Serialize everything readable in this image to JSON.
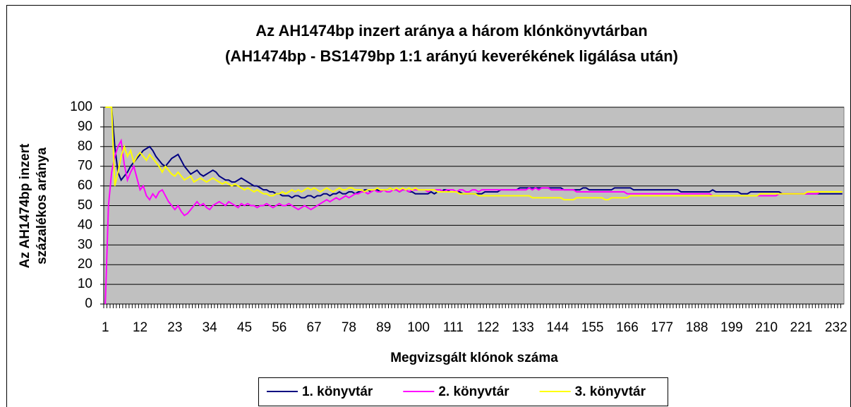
{
  "chart_data": {
    "type": "line",
    "title": "Az AH1474bp inzert aránya a három klónkönyvtárban",
    "subtitle": "(AH1474bp - BS1479bp 1:1 arányú keverékének ligálása után)",
    "ylabel": [
      "Az AH1474bp inzert",
      "százalékos aránya"
    ],
    "xlabel": "Megvizsgált klónok száma",
    "ylim": [
      0,
      100
    ],
    "yticks": [
      0,
      10,
      20,
      30,
      40,
      50,
      60,
      70,
      80,
      90,
      100
    ],
    "grid": true,
    "plot_color": "#c0c0c0",
    "legend": "bottom",
    "categories": [
      1,
      null,
      null,
      null,
      null,
      null,
      null,
      null,
      null,
      null,
      null,
      12,
      null,
      null,
      null,
      null,
      null,
      null,
      null,
      null,
      null,
      null,
      23,
      null,
      null,
      null,
      null,
      null,
      null,
      null,
      null,
      null,
      null,
      34,
      null,
      null,
      null,
      null,
      null,
      null,
      null,
      null,
      null,
      null,
      45,
      null,
      null,
      null,
      null,
      null,
      null,
      null,
      null,
      null,
      null,
      56,
      null,
      null,
      null,
      null,
      null,
      null,
      null,
      null,
      null,
      null,
      67,
      null,
      null,
      null,
      null,
      null,
      null,
      null,
      null,
      null,
      null,
      78,
      null,
      null,
      null,
      null,
      null,
      null,
      null,
      null,
      null,
      null,
      89,
      null,
      null,
      null,
      null,
      null,
      null,
      null,
      null,
      null,
      null,
      100,
      null,
      null,
      null,
      null,
      null,
      null,
      null,
      null,
      null,
      null,
      111,
      null,
      null,
      null,
      null,
      null,
      null,
      null,
      null,
      null,
      null,
      122,
      null,
      null,
      null,
      null,
      null,
      null,
      null,
      null,
      null,
      null,
      133,
      null,
      null,
      null,
      null,
      null,
      null,
      null,
      null,
      null,
      null,
      144,
      null,
      null,
      null,
      null,
      null,
      null,
      null,
      null,
      null,
      null,
      155,
      null,
      null,
      null,
      null,
      null,
      null,
      null,
      null,
      null,
      null,
      166,
      null,
      null,
      null,
      null,
      null,
      null,
      null,
      null,
      null,
      null,
      177,
      null,
      null,
      null,
      null,
      null,
      null,
      null,
      null,
      null,
      null,
      188,
      null,
      null,
      null,
      null,
      null,
      null,
      null,
      null,
      null,
      null,
      199,
      null,
      null,
      null,
      null,
      null,
      null,
      null,
      null,
      null,
      null,
      210,
      null,
      null,
      null,
      null,
      null,
      null,
      null,
      null,
      null,
      null,
      221,
      null,
      null,
      null,
      null,
      null,
      null,
      null,
      null,
      null,
      null,
      232,
      null,
      null
    ],
    "series": [
      {
        "name": "1. könyvtár",
        "color": "#000080",
        "values": [
          100,
          100,
          100,
          80,
          67,
          63,
          65,
          67,
          70,
          72,
          74,
          76,
          78,
          79,
          80,
          78,
          75,
          73,
          71,
          70,
          72,
          74,
          75,
          76,
          73,
          70,
          68,
          66,
          67,
          68,
          66,
          65,
          66,
          67,
          68,
          67,
          65,
          64,
          63,
          63,
          62,
          62,
          63,
          64,
          63,
          62,
          61,
          60,
          60,
          59,
          58,
          58,
          57,
          57,
          56,
          56,
          55,
          55,
          55,
          54,
          55,
          55,
          54,
          54,
          55,
          55,
          54,
          55,
          55,
          56,
          56,
          55,
          56,
          56,
          57,
          56,
          56,
          57,
          57,
          56,
          57,
          57,
          58,
          58,
          57,
          58,
          58,
          57,
          58,
          58,
          59,
          58,
          58,
          57,
          58,
          58,
          57,
          57,
          56,
          56,
          56,
          56,
          56,
          57,
          56,
          57,
          57,
          58,
          58,
          57,
          57,
          57,
          57,
          56,
          56,
          56,
          56,
          56,
          56,
          56,
          57,
          57,
          57,
          57,
          57,
          58,
          58,
          58,
          58,
          58,
          58,
          59,
          59,
          59,
          59,
          59,
          59,
          59,
          59,
          59,
          59,
          59,
          59,
          59,
          59,
          58,
          58,
          58,
          58,
          58,
          58,
          59,
          59,
          58,
          58,
          58,
          58,
          58,
          58,
          58,
          58,
          59,
          59,
          59,
          59,
          59,
          59,
          58,
          58,
          58,
          58,
          58,
          58,
          58,
          58,
          58,
          58,
          58,
          58,
          58,
          58,
          58,
          57,
          57,
          57,
          57,
          57,
          57,
          57,
          57,
          57,
          57,
          58,
          57,
          57,
          57,
          57,
          57,
          57,
          57,
          57,
          56,
          56,
          56,
          57,
          57,
          57,
          57,
          57,
          57,
          57,
          57,
          57,
          57,
          56,
          56,
          56,
          56,
          56,
          56,
          56,
          56,
          56,
          56,
          56,
          56,
          56,
          56,
          56,
          56,
          56,
          56,
          56,
          56
        ]
      },
      {
        "name": "2. könyvtár",
        "color": "#ff00ff",
        "values": [
          0,
          50,
          67,
          75,
          80,
          83,
          71,
          63,
          67,
          70,
          64,
          58,
          60,
          55,
          53,
          56,
          54,
          57,
          58,
          55,
          52,
          50,
          48,
          50,
          47,
          45,
          46,
          48,
          50,
          52,
          50,
          51,
          49,
          48,
          50,
          51,
          52,
          51,
          50,
          52,
          51,
          50,
          49,
          51,
          50,
          51,
          50,
          50,
          49,
          50,
          50,
          51,
          50,
          49,
          50,
          51,
          50,
          50,
          51,
          50,
          49,
          48,
          49,
          50,
          49,
          48,
          49,
          50,
          51,
          52,
          53,
          52,
          53,
          54,
          53,
          54,
          55,
          54,
          55,
          56,
          56,
          57,
          57,
          56,
          57,
          58,
          57,
          57,
          58,
          57,
          57,
          58,
          58,
          57,
          58,
          58,
          57,
          58,
          58,
          58,
          58,
          58,
          57,
          58,
          58,
          58,
          58,
          57,
          58,
          58,
          58,
          57,
          58,
          58,
          57,
          57,
          58,
          58,
          57,
          58,
          58,
          58,
          58,
          58,
          58,
          58,
          58,
          58,
          58,
          58,
          58,
          58,
          58,
          58,
          59,
          58,
          59,
          58,
          59,
          59,
          59,
          58,
          58,
          58,
          58,
          58,
          58,
          58,
          58,
          57,
          57,
          57,
          57,
          57,
          57,
          57,
          57,
          57,
          57,
          57,
          57,
          57,
          57,
          57,
          57,
          56,
          56,
          56,
          56,
          56,
          56,
          56,
          56,
          56,
          56,
          56,
          56,
          56,
          56,
          56,
          56,
          56,
          56,
          56,
          56,
          56,
          56,
          56,
          56,
          56,
          56,
          56,
          55,
          55,
          55,
          55,
          55,
          55,
          55,
          55,
          55,
          55,
          55,
          55,
          55,
          55,
          55,
          55,
          55,
          55,
          55,
          55,
          55,
          56,
          56,
          56,
          56,
          56,
          56,
          56,
          56,
          56,
          56,
          56,
          56,
          56,
          57,
          57,
          57,
          57,
          57,
          57,
          57,
          57
        ]
      },
      {
        "name": "3. könyvtár",
        "color": "#ffff00",
        "values": [
          100,
          100,
          100,
          60,
          67,
          75,
          80,
          75,
          78,
          72,
          75,
          77,
          75,
          73,
          76,
          74,
          72,
          70,
          67,
          70,
          68,
          66,
          65,
          67,
          65,
          63,
          64,
          65,
          62,
          63,
          64,
          63,
          62,
          63,
          64,
          63,
          62,
          61,
          62,
          61,
          60,
          61,
          60,
          59,
          58,
          59,
          58,
          57,
          58,
          57,
          56,
          56,
          55,
          55,
          56,
          56,
          57,
          56,
          57,
          58,
          57,
          58,
          57,
          58,
          59,
          58,
          59,
          58,
          57,
          58,
          59,
          58,
          57,
          58,
          59,
          58,
          58,
          59,
          59,
          58,
          58,
          58,
          57,
          58,
          58,
          58,
          59,
          58,
          58,
          58,
          59,
          58,
          59,
          58,
          59,
          58,
          59,
          58,
          59,
          58,
          58,
          58,
          58,
          58,
          58,
          57,
          57,
          57,
          57,
          57,
          57,
          57,
          56,
          56,
          56,
          56,
          56,
          56,
          55,
          55,
          55,
          55,
          55,
          55,
          55,
          55,
          55,
          55,
          55,
          55,
          55,
          55,
          55,
          55,
          55,
          54,
          54,
          54,
          54,
          54,
          54,
          54,
          54,
          54,
          54,
          53,
          53,
          53,
          53,
          54,
          54,
          54,
          54,
          54,
          54,
          54,
          54,
          54,
          53,
          53,
          54,
          54,
          54,
          54,
          54,
          54,
          55,
          55,
          55,
          55,
          55,
          55,
          55,
          55,
          55,
          55,
          55,
          55,
          55,
          55,
          55,
          55,
          55,
          55,
          55,
          55,
          55,
          55,
          55,
          55,
          55,
          55,
          55,
          55,
          55,
          55,
          55,
          55,
          55,
          55,
          55,
          55,
          55,
          55,
          55,
          55,
          55,
          56,
          56,
          56,
          56,
          56,
          56,
          56,
          56,
          56,
          56,
          56,
          56,
          56,
          56,
          56,
          57,
          57,
          57,
          57,
          57,
          57,
          57,
          57,
          57,
          57,
          57,
          57
        ]
      }
    ]
  }
}
